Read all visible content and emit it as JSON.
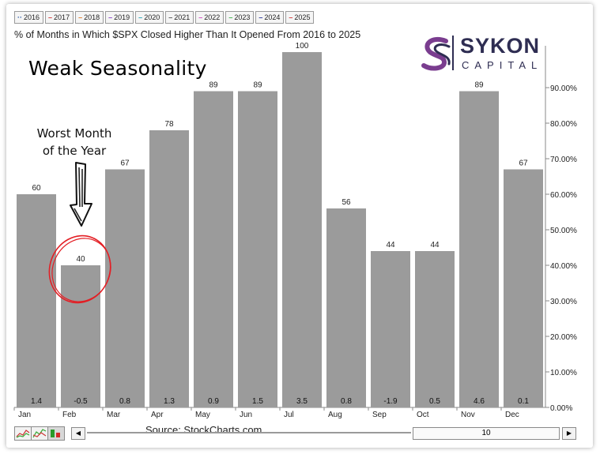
{
  "year_tabs": [
    {
      "label": "2016",
      "color": "#2b5aa8"
    },
    {
      "label": "2017",
      "color": "#d43a3a"
    },
    {
      "label": "2018",
      "color": "#e07a26"
    },
    {
      "label": "2019",
      "color": "#8a44c8"
    },
    {
      "label": "2020",
      "color": "#2aa6b8"
    },
    {
      "label": "2021",
      "color": "#555555"
    },
    {
      "label": "2022",
      "color": "#d44ac2"
    },
    {
      "label": "2023",
      "color": "#3fb44a"
    },
    {
      "label": "2024",
      "color": "#2e3a9a"
    },
    {
      "label": "2025",
      "color": "#d43a3a"
    }
  ],
  "headline": "Weak Seasonality",
  "annotation": {
    "text": "Worst Month of the Year"
  },
  "logo": {
    "name": "SYKON",
    "sub": "CAPITAL",
    "color": "#2e2d52",
    "accent": "#7a3d8f"
  },
  "footer": {
    "source": "Source: StockCharts.com",
    "period_value": "10"
  },
  "chart_data": {
    "type": "bar",
    "title": "% of Months in Which $SPX Closed Higher Than It Opened From 2016 to 2025",
    "categories": [
      "Jan",
      "Feb",
      "Mar",
      "Apr",
      "May",
      "Jun",
      "Jul",
      "Aug",
      "Sep",
      "Oct",
      "Nov",
      "Dec"
    ],
    "values": [
      60,
      40,
      67,
      78,
      89,
      89,
      100,
      56,
      44,
      44,
      89,
      67
    ],
    "value_labels": [
      "60",
      "40",
      "67",
      "78",
      "89",
      "89",
      "100",
      "56",
      "44",
      "44",
      "89",
      "67"
    ],
    "bottom_labels": [
      "1.4",
      "-0.5",
      "0.8",
      "1.3",
      "0.9",
      "1.5",
      "3.5",
      "0.8",
      "-1.9",
      "0.5",
      "4.6",
      "0.1"
    ],
    "y_ticks": [
      "0.00%",
      "10.00%",
      "20.00%",
      "30.00%",
      "40.00%",
      "50.00%",
      "60.00%",
      "70.00%",
      "80.00%",
      "90.00%"
    ],
    "ylim": [
      0,
      100
    ],
    "axis_side": "right",
    "grid": false,
    "bar_color": "#9b9b9b",
    "highlight_category": "Feb",
    "highlight_color": "#e31e24"
  }
}
